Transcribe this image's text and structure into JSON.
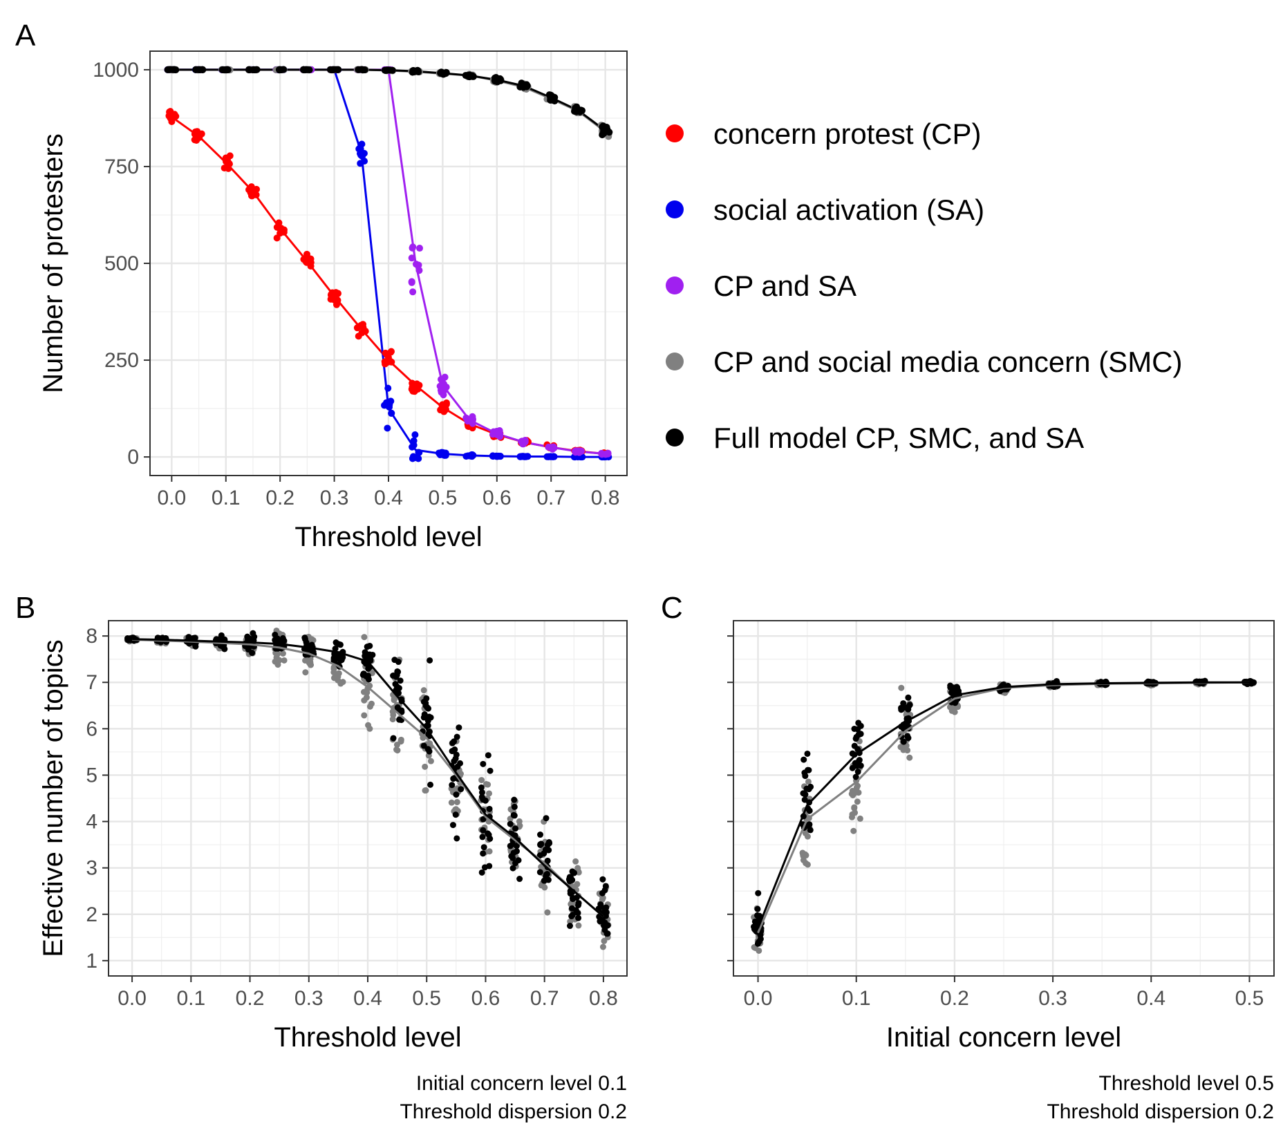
{
  "chart_data": [
    {
      "panel": "A",
      "type": "scatter",
      "xlabel": "Threshold level",
      "ylabel": "Number of protesters",
      "xlim": [
        -0.04,
        0.84
      ],
      "ylim": [
        -48,
        1048
      ],
      "xticks": [
        0.0,
        0.1,
        0.2,
        0.3,
        0.4,
        0.5,
        0.6,
        0.7,
        0.8
      ],
      "xtick_labels": [
        "0.0",
        "0.1",
        "0.2",
        "0.3",
        "0.4",
        "0.5",
        "0.6",
        "0.7",
        "0.8"
      ],
      "yticks": [
        0,
        250,
        500,
        750,
        1000
      ],
      "ytick_labels": [
        "0",
        "250",
        "500",
        "750",
        "1000"
      ],
      "grid": true,
      "legend_position": "right",
      "x": [
        0.0,
        0.05,
        0.1,
        0.15,
        0.2,
        0.25,
        0.3,
        0.35,
        0.4,
        0.45,
        0.5,
        0.55,
        0.6,
        0.65,
        0.7,
        0.75,
        0.8
      ],
      "series": [
        {
          "name": "concern protest (CP)",
          "color": "#ff0000",
          "values": [
            878,
            828,
            760,
            685,
            590,
            505,
            415,
            330,
            250,
            185,
            128,
            85,
            58,
            38,
            25,
            15,
            8
          ],
          "spread": [
            28,
            30,
            32,
            30,
            32,
            28,
            32,
            30,
            34,
            26,
            22,
            15,
            12,
            9,
            7,
            5,
            4
          ]
        },
        {
          "name": "social activation (SA)",
          "color": "#0000ee",
          "values": [
            1000,
            1000,
            1000,
            1000,
            1000,
            1000,
            1000,
            785,
            125,
            18,
            8,
            4,
            2,
            1,
            1,
            0,
            0
          ],
          "spread": [
            0,
            0,
            0,
            0,
            0,
            0,
            0,
            70,
            90,
            45,
            8,
            4,
            2,
            1,
            1,
            0,
            0
          ]
        },
        {
          "name": "CP and SA",
          "color": "#a020f0",
          "values": [
            1000,
            1000,
            1000,
            1000,
            1000,
            1000,
            1000,
            1000,
            1000,
            500,
            185,
            95,
            60,
            38,
            25,
            14,
            8
          ],
          "spread": [
            0,
            0,
            0,
            0,
            0,
            0,
            0,
            0,
            0,
            200,
            40,
            15,
            12,
            9,
            7,
            5,
            4
          ]
        },
        {
          "name": "CP and social media concern (SMC)",
          "color": "#808080",
          "values": [
            1000,
            1000,
            1000,
            1000,
            1000,
            1000,
            1000,
            1000,
            998,
            995,
            990,
            985,
            972,
            955,
            925,
            893,
            840
          ],
          "spread": [
            1,
            1,
            1,
            1,
            1,
            1,
            1,
            1,
            2,
            4,
            5,
            6,
            9,
            11,
            14,
            17,
            20
          ]
        },
        {
          "name": "Full model CP, SMC, and SA",
          "color": "#000000",
          "values": [
            1000,
            1000,
            1000,
            1000,
            1000,
            1000,
            1000,
            1000,
            999,
            996,
            991,
            985,
            974,
            958,
            928,
            895,
            843
          ],
          "spread": [
            1,
            1,
            1,
            1,
            1,
            1,
            1,
            1,
            2,
            4,
            5,
            6,
            9,
            11,
            14,
            17,
            20
          ]
        }
      ]
    },
    {
      "panel": "B",
      "type": "scatter",
      "xlabel": "Threshold level",
      "ylabel": "Effective number of topics",
      "xlim": [
        -0.04,
        0.84
      ],
      "ylim": [
        0.67,
        8.33
      ],
      "xticks": [
        0.0,
        0.1,
        0.2,
        0.3,
        0.4,
        0.5,
        0.6,
        0.7,
        0.8
      ],
      "xtick_labels": [
        "0.0",
        "0.1",
        "0.2",
        "0.3",
        "0.4",
        "0.5",
        "0.6",
        "0.7",
        "0.8"
      ],
      "yticks": [
        1,
        2,
        3,
        4,
        5,
        6,
        7,
        8
      ],
      "ytick_labels": [
        "1",
        "2",
        "3",
        "4",
        "5",
        "6",
        "7",
        "8"
      ],
      "grid": true,
      "x": [
        0.0,
        0.05,
        0.1,
        0.15,
        0.2,
        0.25,
        0.3,
        0.35,
        0.4,
        0.45,
        0.5,
        0.55,
        0.6,
        0.65,
        0.7,
        0.75,
        0.8
      ],
      "series": [
        {
          "color": "#808080",
          "values": [
            7.92,
            7.9,
            7.88,
            7.85,
            7.82,
            7.75,
            7.62,
            7.35,
            6.9,
            6.35,
            5.8,
            5.0,
            4.1,
            3.6,
            3.1,
            2.5,
            1.95
          ],
          "spread": [
            0.05,
            0.1,
            0.15,
            0.2,
            0.3,
            0.45,
            0.55,
            0.75,
            1.3,
            1.6,
            1.7,
            1.7,
            1.6,
            1.5,
            1.5,
            1.3,
            1.1
          ]
        },
        {
          "color": "#000000",
          "values": [
            7.93,
            7.92,
            7.9,
            7.88,
            7.86,
            7.83,
            7.75,
            7.65,
            7.45,
            6.7,
            6.0,
            5.05,
            4.15,
            3.65,
            3.05,
            2.5,
            1.95
          ],
          "spread": [
            0.05,
            0.1,
            0.15,
            0.2,
            0.25,
            0.3,
            0.35,
            0.4,
            0.55,
            1.2,
            1.6,
            1.8,
            1.7,
            1.6,
            1.5,
            1.3,
            1.1
          ]
        }
      ]
    },
    {
      "panel": "C",
      "type": "scatter",
      "xlabel": "Initial concern level",
      "xlim": [
        -0.025,
        0.525
      ],
      "ylim": [
        0.67,
        8.33
      ],
      "xticks": [
        0.0,
        0.1,
        0.2,
        0.3,
        0.4,
        0.5
      ],
      "xtick_labels": [
        "0.0",
        "0.1",
        "0.2",
        "0.3",
        "0.4",
        "0.5"
      ],
      "yticks": [
        1,
        2,
        3,
        4,
        5,
        6,
        7,
        8
      ],
      "grid": true,
      "x": [
        0.0,
        0.05,
        0.1,
        0.15,
        0.2,
        0.25,
        0.3,
        0.35,
        0.4,
        0.45,
        0.5
      ],
      "series": [
        {
          "color": "#808080",
          "values": [
            1.6,
            4.05,
            4.85,
            5.95,
            6.65,
            6.88,
            6.94,
            6.97,
            6.98,
            6.99,
            7.0
          ],
          "spread": [
            0.7,
            1.5,
            1.6,
            1.1,
            0.5,
            0.15,
            0.1,
            0.06,
            0.05,
            0.04,
            0.04
          ]
        },
        {
          "color": "#000000",
          "values": [
            1.7,
            4.35,
            5.45,
            6.15,
            6.72,
            6.9,
            6.96,
            6.98,
            6.99,
            7.0,
            7.0
          ],
          "spread": [
            0.8,
            1.6,
            1.4,
            0.8,
            0.3,
            0.12,
            0.08,
            0.06,
            0.05,
            0.04,
            0.04
          ]
        }
      ]
    }
  ],
  "panels": {
    "a": {
      "letter": "A",
      "xlabel": "Threshold level",
      "ylabel": "Number of protesters"
    },
    "b": {
      "letter": "B",
      "xlabel": "Threshold level",
      "ylabel": "Effective number of topics",
      "caption_line1": "Initial concern level 0.1",
      "caption_line2": "Threshold dispersion 0.2"
    },
    "c": {
      "letter": "C",
      "xlabel": "Initial concern level",
      "caption_line1": "Threshold level 0.5",
      "caption_line2": "Threshold dispersion 0.2"
    }
  },
  "legend": {
    "items": [
      {
        "label": "concern protest (CP)",
        "color": "#ff0000"
      },
      {
        "label": "social activation (SA)",
        "color": "#0000ee"
      },
      {
        "label": "CP and SA",
        "color": "#a020f0"
      },
      {
        "label": "CP and social media concern (SMC)",
        "color": "#808080"
      },
      {
        "label": "Full model CP, SMC, and SA",
        "color": "#000000"
      }
    ]
  }
}
